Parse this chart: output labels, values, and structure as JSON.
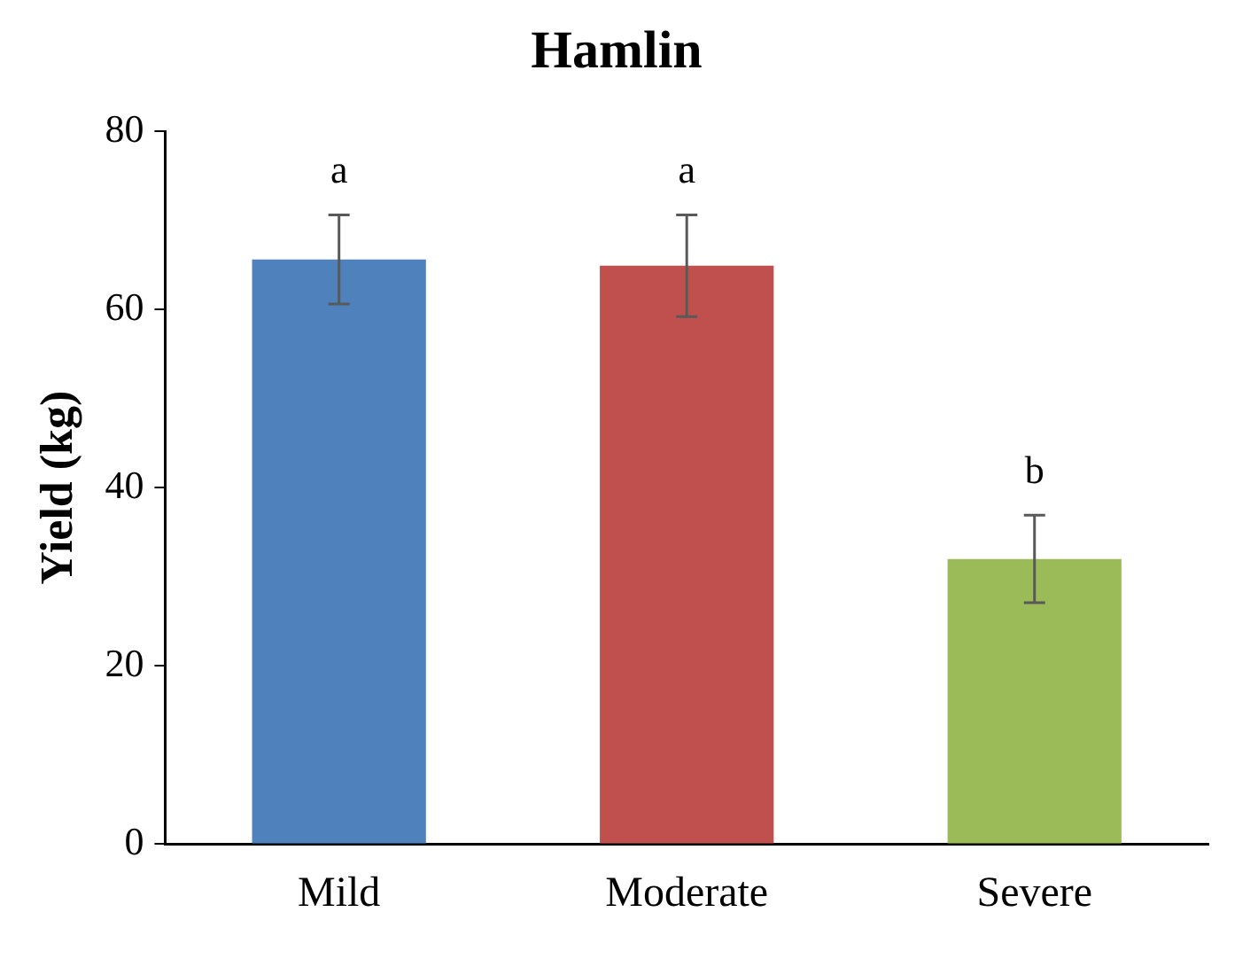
{
  "chart_data": {
    "type": "bar",
    "title": "Hamlin",
    "ylabel": "Yield (kg)",
    "categories": [
      "Mild",
      "Moderate",
      "Severe"
    ],
    "values": [
      65.6,
      64.9,
      32.0
    ],
    "colors": [
      "#4f81bd",
      "#c0504d",
      "#9bbb59"
    ],
    "errors": [
      5,
      5.7,
      4.9
    ],
    "ylim": [
      0,
      80
    ],
    "yticks": [
      0,
      20,
      40,
      60,
      80
    ],
    "grid": false,
    "legend": false,
    "annotations": [
      "a",
      "a",
      "b"
    ]
  }
}
